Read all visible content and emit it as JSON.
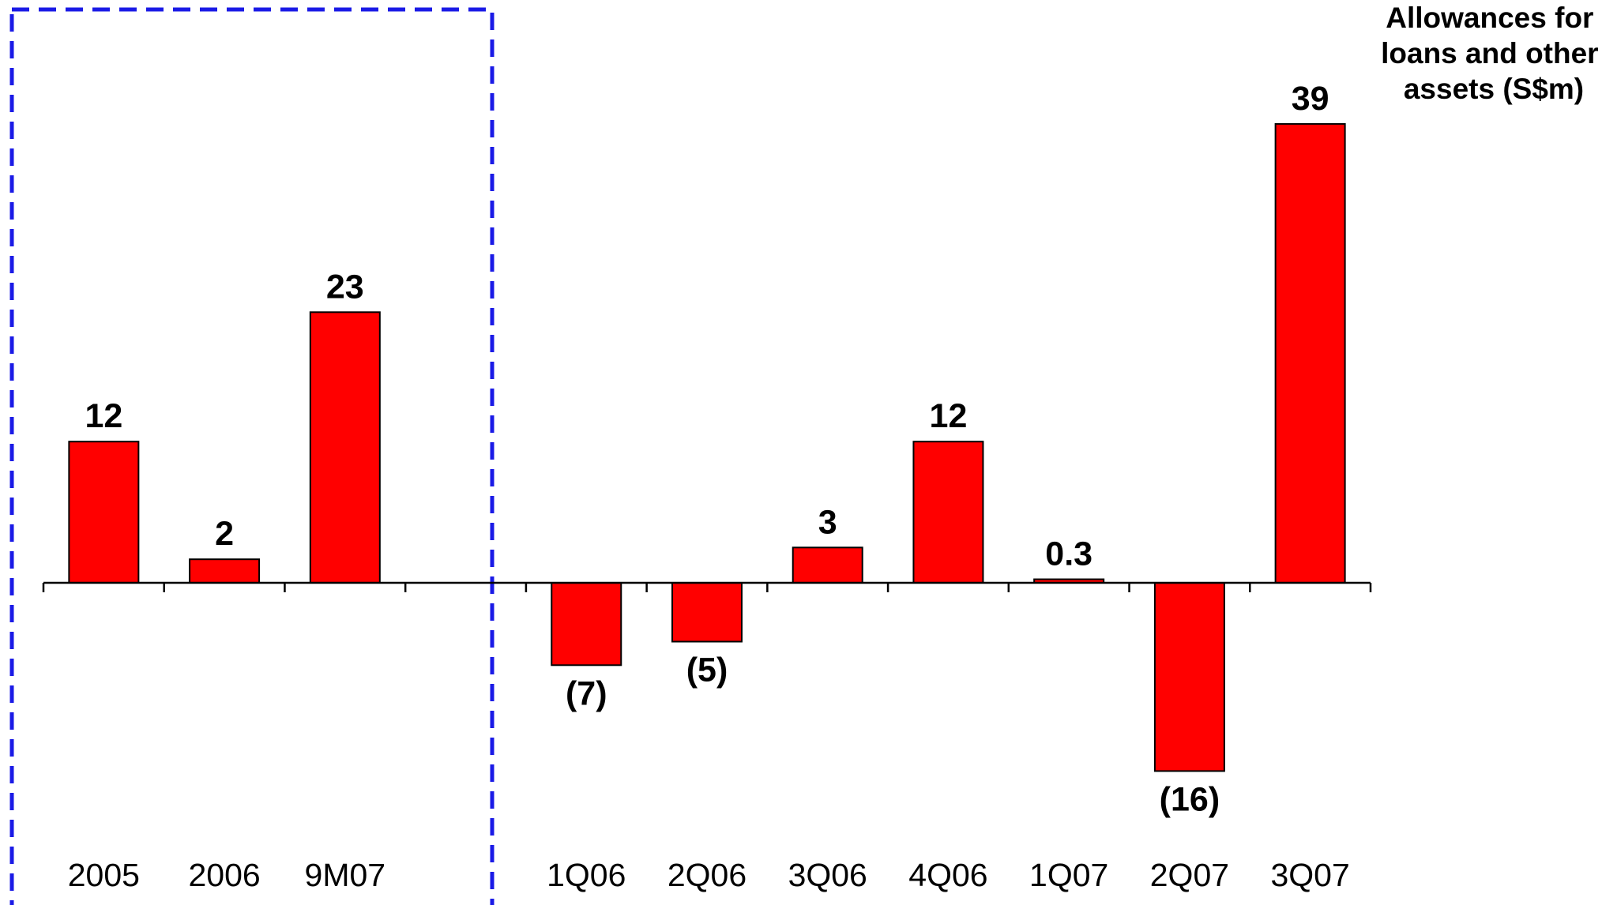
{
  "chart_data": {
    "type": "bar",
    "title_lines": [
      "Allowances for",
      "loans and other",
      "assets (S$m)"
    ],
    "categories": [
      "2005",
      "2006",
      "9M07",
      "",
      "1Q06",
      "2Q06",
      "3Q06",
      "4Q06",
      "1Q07",
      "2Q07",
      "3Q07"
    ],
    "values": [
      12,
      2,
      23,
      null,
      -7,
      -5,
      3,
      12,
      0.3,
      -16,
      39
    ],
    "value_labels": [
      "12",
      "2",
      "23",
      "",
      "(7)",
      "(5)",
      "3",
      "12",
      "0.3",
      "(16)",
      "39"
    ],
    "xlabel": "",
    "ylabel": "",
    "grid": false,
    "highlight_group": [
      "2005",
      "2006",
      "9M07"
    ],
    "colors": {
      "bar": "#ff0000",
      "highlight_box": "#1a1ae6"
    }
  }
}
